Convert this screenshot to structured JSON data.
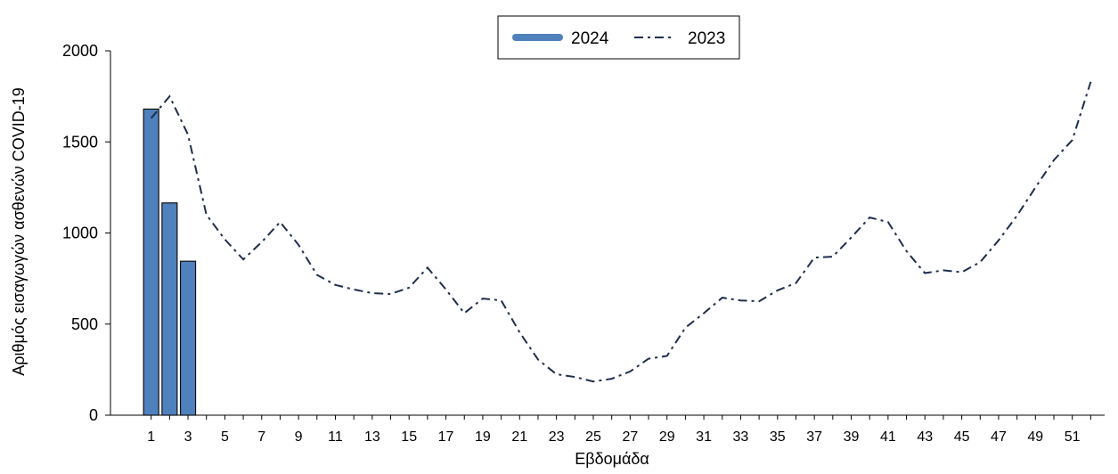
{
  "chart_data": {
    "type": "bar",
    "xlabel": "Εβδομάδα",
    "ylabel": "Αριθμός εισαγωγών ασθενών COVID-19",
    "ylim": [
      0,
      2000
    ],
    "yticks": [
      0,
      500,
      1000,
      1500,
      2000
    ],
    "xlim": [
      0,
      53
    ],
    "xticks": [
      1,
      3,
      5,
      7,
      9,
      11,
      13,
      15,
      17,
      19,
      21,
      23,
      25,
      27,
      29,
      31,
      33,
      35,
      37,
      39,
      41,
      43,
      45,
      47,
      49,
      51
    ],
    "legend_position": "top-center",
    "grid": false,
    "series": [
      {
        "name": "2024",
        "type": "bar",
        "color": "#4f81bd",
        "x": [
          1,
          2,
          3
        ],
        "values": [
          1680,
          1165,
          845
        ]
      },
      {
        "name": "2023",
        "type": "line",
        "style": "dash-dot",
        "color": "#1f2d4d",
        "x": [
          1,
          2,
          3,
          4,
          5,
          6,
          7,
          8,
          9,
          10,
          11,
          12,
          13,
          14,
          15,
          16,
          17,
          18,
          19,
          20,
          21,
          22,
          23,
          24,
          25,
          26,
          27,
          28,
          29,
          30,
          31,
          32,
          33,
          34,
          35,
          36,
          37,
          38,
          39,
          40,
          41,
          42,
          43,
          44,
          45,
          46,
          47,
          48,
          49,
          50,
          51,
          52
        ],
        "values": [
          1630,
          1750,
          1540,
          1100,
          965,
          855,
          950,
          1060,
          935,
          770,
          715,
          690,
          670,
          665,
          700,
          810,
          690,
          560,
          640,
          630,
          455,
          305,
          225,
          210,
          185,
          200,
          240,
          310,
          325,
          480,
          560,
          645,
          630,
          625,
          685,
          725,
          865,
          870,
          975,
          1085,
          1060,
          900,
          780,
          795,
          785,
          840,
          960,
          1095,
          1250,
          1400,
          1510,
          1830
        ]
      }
    ]
  }
}
